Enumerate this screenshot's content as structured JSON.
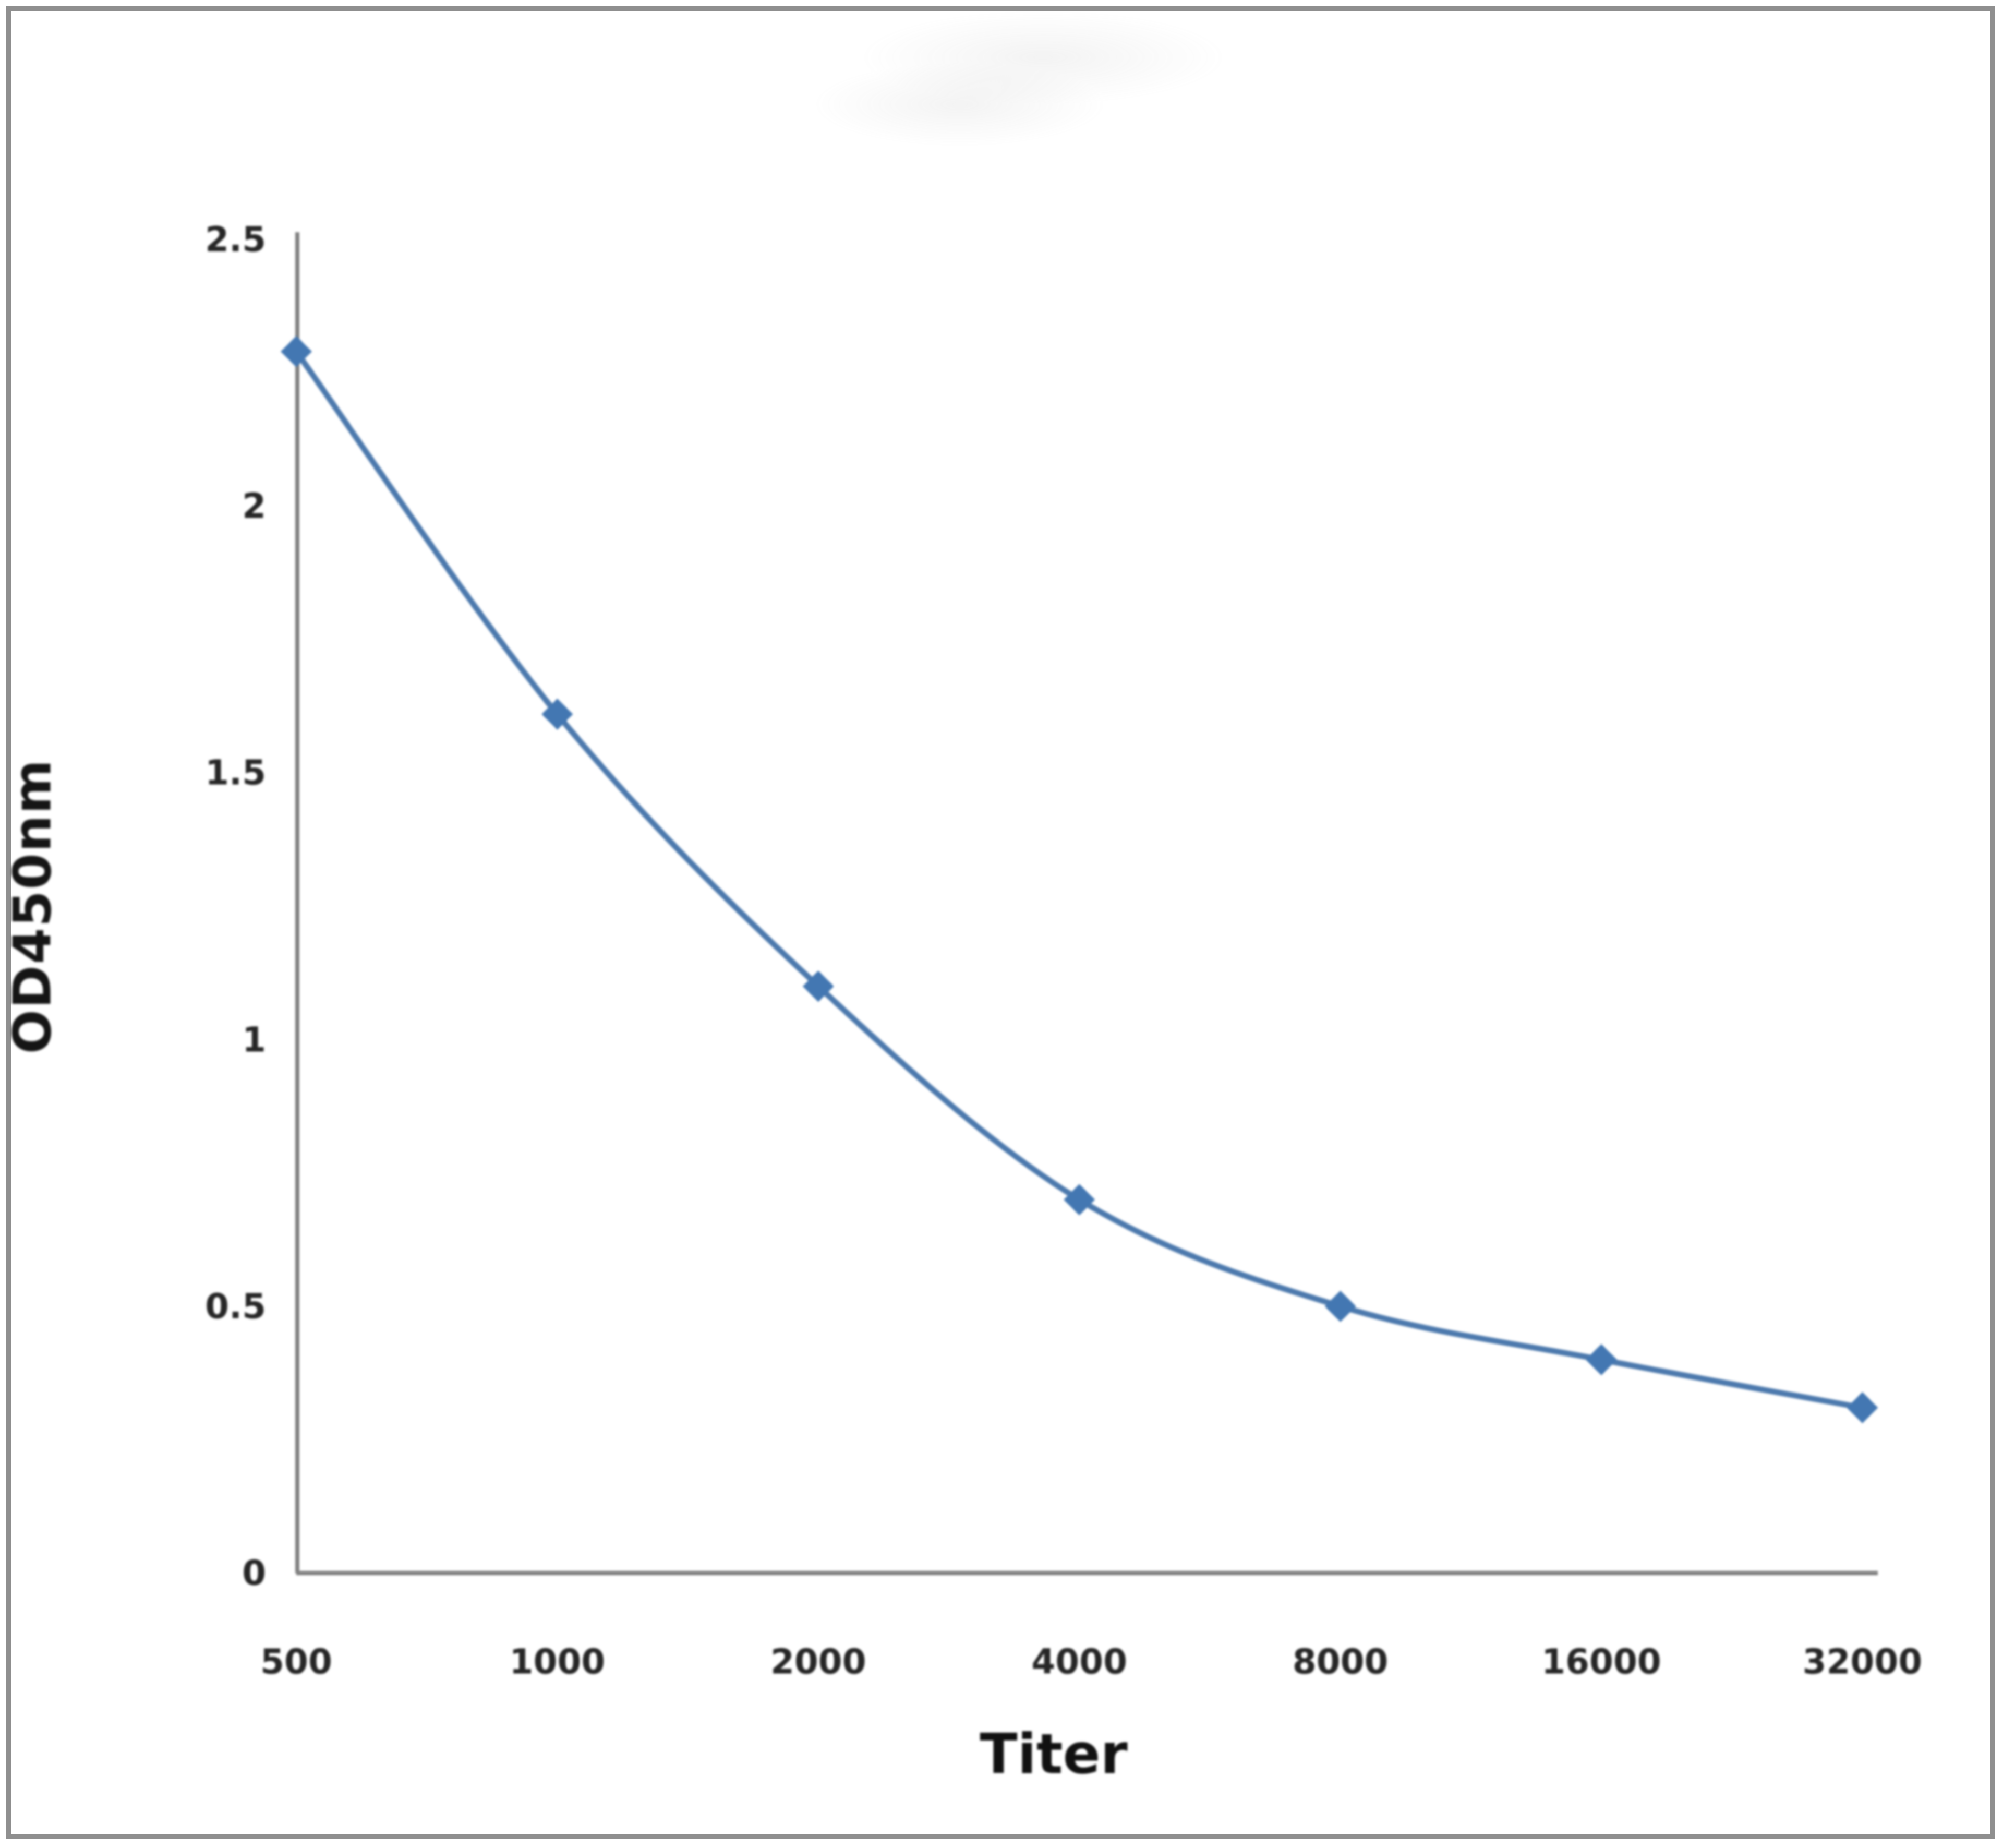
{
  "chart_data": {
    "type": "line",
    "title": "",
    "xlabel": "Titer",
    "ylabel": "OD450nm",
    "categories": [
      "500",
      "1000",
      "2000",
      "4000",
      "8000",
      "16000",
      "32000"
    ],
    "series": [
      {
        "name": "OD450nm",
        "values": [
          2.29,
          1.61,
          1.1,
          0.7,
          0.5,
          0.4,
          0.31
        ]
      }
    ],
    "y_tick_labels": [
      "2.5",
      "2",
      "1.5",
      "1",
      "0.5",
      "0"
    ],
    "ylim": [
      0,
      2.5
    ],
    "grid": false,
    "legend_position": "none",
    "marker_shape": "diamond",
    "line_color": "#4c79ad",
    "marker_color": "#4377b2",
    "axis_color": "#7f7f7f",
    "frame_color": "#8f8f8f",
    "text_color": "#262626"
  }
}
